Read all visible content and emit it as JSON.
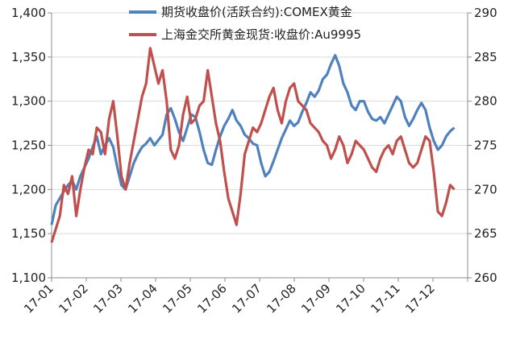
{
  "chart_data": {
    "type": "line",
    "x_labels": [
      "17-01",
      "17-02",
      "17-03",
      "17-04",
      "17-05",
      "17-06",
      "17-07",
      "17-08",
      "17-09",
      "17-10",
      "17-11",
      "17-12"
    ],
    "grid": "horizontal",
    "legend_position": "top-center",
    "y_left": {
      "min": 1100,
      "max": 1400,
      "step": 50,
      "ticks": [
        "1,100",
        "1,150",
        "1,200",
        "1,250",
        "1,300",
        "1,350",
        "1,400"
      ]
    },
    "y_right": {
      "min": 260,
      "max": 290,
      "step": 5,
      "ticks": [
        "260",
        "265",
        "270",
        "275",
        "280",
        "285",
        "290"
      ]
    },
    "series": [
      {
        "name": "期货收盘价(活跃合约):COMEX黄金",
        "axis": "left",
        "color": "#4f81bd",
        "values": [
          1160,
          1182,
          1190,
          1198,
          1205,
          1210,
          1200,
          1215,
          1225,
          1235,
          1248,
          1260,
          1240,
          1250,
          1258,
          1248,
          1225,
          1205,
          1200,
          1215,
          1230,
          1240,
          1248,
          1252,
          1258,
          1250,
          1256,
          1262,
          1285,
          1292,
          1280,
          1265,
          1255,
          1270,
          1285,
          1282,
          1265,
          1245,
          1230,
          1228,
          1245,
          1260,
          1272,
          1280,
          1290,
          1278,
          1272,
          1262,
          1258,
          1252,
          1250,
          1230,
          1215,
          1220,
          1232,
          1245,
          1258,
          1268,
          1278,
          1272,
          1276,
          1288,
          1298,
          1310,
          1305,
          1312,
          1325,
          1330,
          1342,
          1352,
          1340,
          1320,
          1310,
          1295,
          1290,
          1300,
          1300,
          1288,
          1280,
          1278,
          1282,
          1275,
          1285,
          1295,
          1305,
          1300,
          1282,
          1272,
          1280,
          1290,
          1298,
          1290,
          1270,
          1255,
          1245,
          1250,
          1260,
          1266,
          1270
        ]
      },
      {
        "name": "上海金交所黄金现货:收盘价:Au9995",
        "axis": "right",
        "color": "#c0504d",
        "values": [
          264.0,
          265.5,
          267.0,
          270.5,
          269.5,
          271.5,
          267.0,
          270.0,
          272.5,
          274.5,
          274.0,
          277.0,
          276.5,
          274.0,
          278.0,
          280.0,
          276.0,
          271.5,
          270.0,
          273.0,
          275.5,
          278.0,
          280.5,
          282.0,
          286.0,
          284.0,
          282.0,
          283.5,
          280.0,
          274.5,
          273.5,
          275.0,
          278.5,
          280.5,
          277.5,
          278.0,
          279.5,
          280.0,
          283.5,
          280.5,
          277.5,
          275.5,
          272.0,
          269.0,
          267.5,
          266.0,
          269.5,
          274.0,
          275.5,
          277.0,
          276.5,
          277.5,
          279.0,
          280.5,
          281.5,
          279.0,
          277.5,
          280.0,
          281.5,
          282.0,
          280.0,
          279.5,
          279.0,
          277.5,
          277.0,
          276.5,
          275.5,
          275.0,
          273.5,
          274.5,
          276.0,
          275.0,
          273.0,
          274.0,
          275.5,
          275.0,
          274.5,
          273.5,
          272.5,
          272.0,
          273.5,
          274.5,
          275.0,
          274.0,
          275.5,
          276.0,
          274.5,
          273.0,
          272.5,
          273.0,
          274.5,
          276.0,
          275.5,
          272.0,
          267.5,
          267.0,
          268.5,
          270.5,
          270.0
        ]
      }
    ]
  }
}
